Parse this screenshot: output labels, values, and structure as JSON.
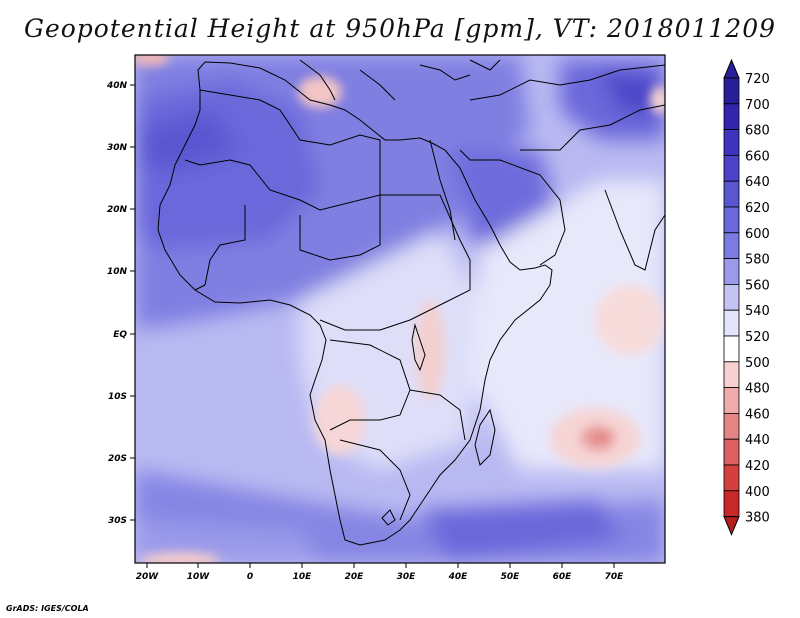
{
  "title": "Geopotential Height at 950hPa [gpm], VT: 2018011209",
  "credit": "GrADS: IGES/COLA",
  "map": {
    "region": "Africa and Middle East",
    "lon_labels": [
      "20W",
      "10W",
      "0",
      "10E",
      "20E",
      "30E",
      "40E",
      "50E",
      "60E",
      "70E"
    ],
    "lat_labels": [
      "40N",
      "30N",
      "20N",
      "10N",
      "EQ",
      "10S",
      "20S",
      "30S"
    ]
  },
  "colorbar": {
    "levels": [
      "720",
      "700",
      "680",
      "660",
      "640",
      "620",
      "600",
      "580",
      "560",
      "540",
      "520",
      "500",
      "480",
      "460",
      "440",
      "420",
      "400",
      "380"
    ],
    "colors": [
      "#2a1f9a",
      "#3326ad",
      "#3d33bd",
      "#4b44c8",
      "#5a56d2",
      "#6a68da",
      "#7b7be2",
      "#9a9aea",
      "#c3c3f4",
      "#e4e4fb",
      "#ffffff",
      "#f7d0d0",
      "#efaaaa",
      "#e68585",
      "#dd6161",
      "#d43f3f",
      "#c72828",
      "#b41e1e"
    ]
  }
}
